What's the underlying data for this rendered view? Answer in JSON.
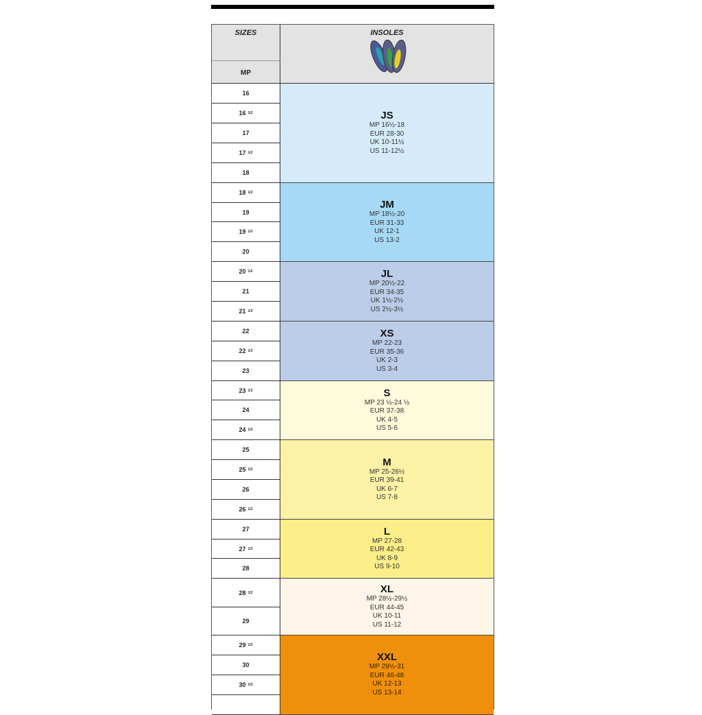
{
  "header": {
    "sizes_label": "SIZES",
    "mp_label": "MP",
    "insoles_label": "INSOLES",
    "insoles_image": "insoles-image"
  },
  "rows": [
    {
      "n": "16",
      "half": ""
    },
    {
      "n": "16",
      "half": "1/2"
    },
    {
      "n": "17",
      "half": ""
    },
    {
      "n": "17",
      "half": "1/2"
    },
    {
      "n": "18",
      "half": ""
    },
    {
      "n": "18",
      "half": "1/2"
    },
    {
      "n": "19",
      "half": ""
    },
    {
      "n": "19",
      "half": "1/2"
    },
    {
      "n": "20",
      "half": ""
    },
    {
      "n": "20",
      "half": "1/2"
    },
    {
      "n": "21",
      "half": ""
    },
    {
      "n": "21",
      "half": "1/2"
    },
    {
      "n": "22",
      "half": ""
    },
    {
      "n": "22",
      "half": "1/2"
    },
    {
      "n": "23",
      "half": ""
    },
    {
      "n": "23",
      "half": "1/2"
    },
    {
      "n": "24",
      "half": ""
    },
    {
      "n": "24",
      "half": "1/2"
    },
    {
      "n": "25",
      "half": ""
    },
    {
      "n": "25",
      "half": "1/2"
    },
    {
      "n": "26",
      "half": ""
    },
    {
      "n": "26",
      "half": "1/2"
    },
    {
      "n": "27",
      "half": ""
    },
    {
      "n": "27",
      "half": "1/2"
    },
    {
      "n": "28",
      "half": ""
    },
    {
      "n": "28",
      "half": "1/2"
    },
    {
      "n": "29",
      "half": ""
    },
    {
      "n": "29",
      "half": "1/2"
    },
    {
      "n": "30",
      "half": ""
    },
    {
      "n": "30",
      "half": "1/2"
    },
    {
      "n": "",
      "half": ""
    }
  ],
  "groups": [
    {
      "name": "JS",
      "color": "#d6ebfa",
      "lines": [
        "MP 16½-18",
        "EUR 28-30",
        "UK 10-11½",
        "US 11-12½"
      ]
    },
    {
      "name": "JM",
      "color": "#a6d9f5",
      "lines": [
        "MP 18½-20",
        "EUR 31-33",
        "UK 12-1",
        "US 13-2"
      ]
    },
    {
      "name": "JL",
      "color": "#bccde9",
      "lines": [
        "MP 20½-22",
        "EUR 34-35",
        "UK 1½-2½",
        "US 2½-3½"
      ]
    },
    {
      "name": "XS",
      "color": "#bccde9",
      "lines": [
        "MP 22-23",
        "EUR 35-36",
        "UK 2-3",
        "US  3-4"
      ]
    },
    {
      "name": "S",
      "color": "#fdfbdc",
      "lines": [
        "MP 23 ½-24  ½",
        "EUR 37-38",
        "UK 4-5",
        "US 5-6"
      ]
    },
    {
      "name": "M",
      "color": "#fcf1a4",
      "lines": [
        "MP 25-26½",
        "EUR 39-41",
        "UK 6-7",
        "US 7-8"
      ]
    },
    {
      "name": "L",
      "color": "#fcee88",
      "lines": [
        "MP 27-28",
        "EUR 42-43",
        "UK 8-9",
        "US 9-10"
      ]
    },
    {
      "name": "XL",
      "color": "#fdf5e7",
      "lines": [
        "MP 28½-29½",
        "EUR 44-45",
        "UK 10-11",
        "US 11-12"
      ]
    },
    {
      "name": "XXL",
      "color": "#f0900a",
      "lines": [
        "MP 29½-31",
        "EUR 46-48",
        "UK 12-13",
        "US 13-14"
      ]
    }
  ]
}
